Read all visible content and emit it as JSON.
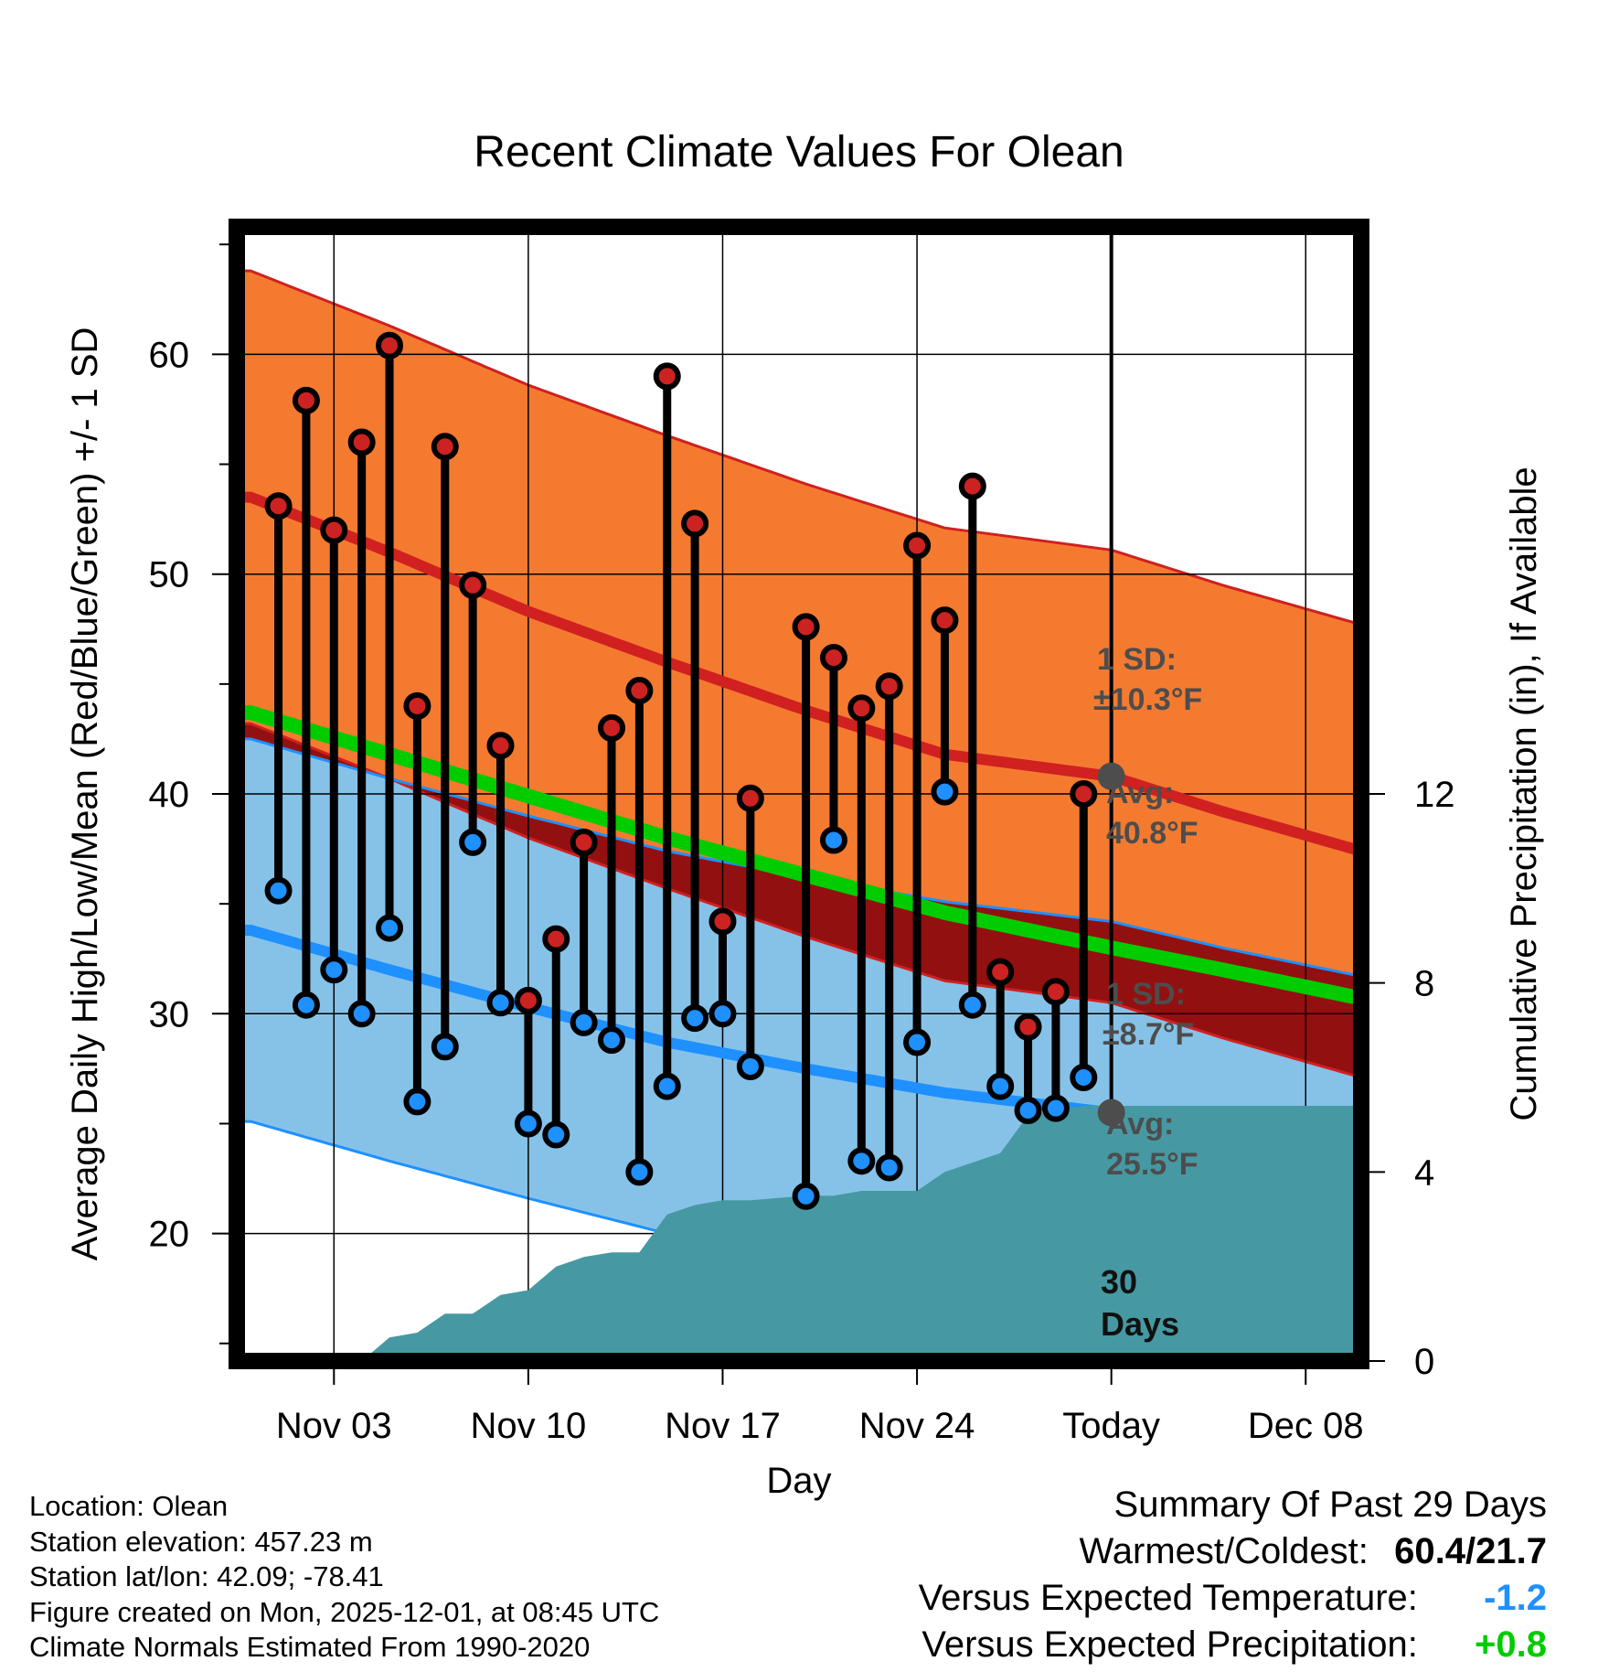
{
  "header": {
    "title": "Recent Climate Values For Olean"
  },
  "axes": {
    "left_label": "Average Daily High/Low/Mean (Red/Blue/Green) +/- 1 SD",
    "right_label": "Cumulative Precipitation (in), If Available",
    "x_label": "Day"
  },
  "annotations": {
    "high_sd_line1": "1 SD:",
    "high_sd_line2": "±10.3°F",
    "high_avg_line1": "Avg:",
    "high_avg_line2": "40.8°F",
    "low_sd_line1": "1 SD:",
    "low_sd_line2": "±8.7°F",
    "low_avg_line1": "Avg:",
    "low_avg_line2": "25.5°F",
    "days_line1": "30",
    "days_line2": "Days"
  },
  "info": {
    "location": "Location: Olean",
    "elevation": "Station elevation: 457.23 m",
    "latlon": "Station lat/lon: 42.09; -78.41",
    "created": "Figure created on Mon, 2025-12-01, at 08:45 UTC",
    "normals": "Climate Normals Estimated From 1990-2020"
  },
  "summary": {
    "heading": "Summary Of Past 29 Days",
    "warm_cold_label": "Warmest/Coldest:",
    "warm_cold_value": "60.4/21.7",
    "temp_label": "Versus Expected Temperature:",
    "temp_value": "-1.2",
    "temp_color": "#1e90ff",
    "precip_label": "Versus Expected Precipitation:",
    "precip_value": "+0.8",
    "precip_color": "#00cc00"
  },
  "colors": {
    "high_band": "#f47a30",
    "low_band": "#86c2e8",
    "overlap": "#931010",
    "high_line": "#d02020",
    "low_line": "#1e90ff",
    "mean_line": "#00cc00",
    "precip": "#4699a3",
    "today_dot": "#4d4d4d"
  },
  "chart_data": {
    "type": "line",
    "title": "Recent Climate Values For Olean",
    "xlabel": "Day",
    "ylabel": "Average Daily High/Low/Mean (Red/Blue/Green) +/- 1 SD",
    "y2label": "Cumulative Precipitation (in), If Available",
    "xlim": [
      -0.5,
      40
    ],
    "ylim": [
      14.2,
      65.8
    ],
    "y2lim": [
      0,
      24
    ],
    "x_ticks": [
      {
        "x": 3,
        "label": "Nov 03"
      },
      {
        "x": 10,
        "label": "Nov 10"
      },
      {
        "x": 17,
        "label": "Nov 17"
      },
      {
        "x": 24,
        "label": "Nov 24"
      },
      {
        "x": 31,
        "label": "Today"
      },
      {
        "x": 38,
        "label": "Dec 08"
      }
    ],
    "y_ticks": [
      20,
      30,
      40,
      50,
      60
    ],
    "y2_ticks": [
      0,
      4,
      8,
      12
    ],
    "today_x": 31,
    "normals": {
      "x": [
        0,
        5,
        10,
        15,
        20,
        25,
        31,
        35,
        40
      ],
      "high_avg": [
        53.5,
        51.0,
        48.3,
        46.0,
        43.8,
        41.8,
        40.8,
        39.2,
        37.4
      ],
      "high_sd": 10.3,
      "low_avg": [
        33.8,
        32.0,
        30.3,
        28.7,
        27.5,
        26.4,
        25.5,
        24.3,
        23.0
      ],
      "low_sd": 8.7,
      "mean_avg": [
        43.7,
        41.8,
        39.9,
        38.0,
        36.3,
        34.6,
        33.0,
        32.0,
        30.7
      ]
    },
    "series": [
      {
        "name": "Daily High",
        "color": "#cc2222",
        "x": [
          1,
          2,
          3,
          4,
          5,
          6,
          7,
          8,
          9,
          10,
          11,
          12,
          13,
          14,
          15,
          16,
          17,
          18,
          20,
          21,
          22,
          23,
          24,
          25,
          26,
          27,
          28,
          29,
          30
        ],
        "values": [
          53.1,
          57.9,
          52.0,
          56.0,
          60.4,
          44.0,
          55.8,
          49.5,
          42.2,
          30.6,
          33.4,
          37.8,
          43.0,
          44.7,
          59.0,
          52.3,
          34.2,
          39.8,
          47.6,
          46.2,
          43.9,
          44.9,
          51.3,
          47.9,
          54.0,
          31.9,
          29.4,
          31.0,
          40.0
        ]
      },
      {
        "name": "Daily Low",
        "color": "#1e90ff",
        "x": [
          1,
          2,
          3,
          4,
          5,
          6,
          7,
          8,
          9,
          10,
          11,
          12,
          13,
          14,
          15,
          16,
          17,
          18,
          20,
          21,
          22,
          23,
          24,
          25,
          26,
          27,
          28,
          29,
          30
        ],
        "values": [
          35.6,
          30.4,
          32.0,
          30.0,
          33.9,
          26.0,
          28.5,
          37.8,
          30.5,
          25.0,
          24.5,
          29.6,
          28.8,
          22.8,
          26.7,
          29.8,
          30.0,
          27.6,
          21.7,
          37.9,
          23.3,
          23.0,
          28.7,
          40.1,
          30.4,
          26.7,
          25.6,
          25.7,
          27.1
        ]
      }
    ],
    "precipitation": {
      "name": "Cumulative Precipitation",
      "x": [
        0,
        0.5,
        1,
        1.5,
        2,
        3,
        4,
        5,
        6,
        7,
        8,
        9,
        10,
        11,
        12,
        13,
        14,
        15,
        16,
        17,
        18,
        19,
        20,
        21,
        22,
        23,
        24,
        25,
        26,
        27,
        28,
        29,
        30,
        31,
        40
      ],
      "values": [
        0,
        0,
        0,
        0,
        0,
        0,
        0,
        0.5,
        0.6,
        1.0,
        1.0,
        1.4,
        1.5,
        2.0,
        2.2,
        2.3,
        2.3,
        3.1,
        3.3,
        3.4,
        3.4,
        3.45,
        3.5,
        3.5,
        3.6,
        3.6,
        3.6,
        4.0,
        4.2,
        4.4,
        5.2,
        5.3,
        5.4,
        5.4,
        5.4
      ]
    }
  }
}
